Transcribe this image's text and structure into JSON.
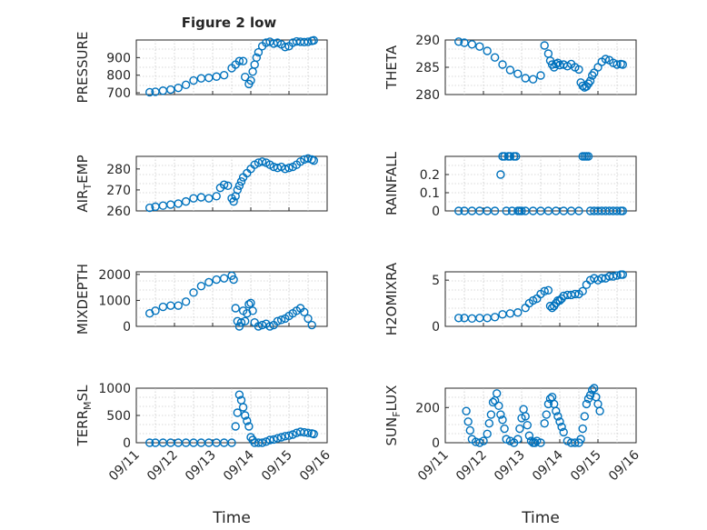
{
  "figure_title": "Figure 2 low",
  "colors": {
    "marker": "#0072bd",
    "axis": "#262626",
    "grid": "#b5b5b5"
  },
  "xlabel": "Time",
  "xticks": [
    "09/11",
    "09/12",
    "09/13",
    "09/14",
    "09/15",
    "09/16"
  ],
  "chart_data": [
    {
      "type": "scatter",
      "ylabel": "PRESSURE",
      "ylim": [
        690,
        1000
      ],
      "yticks": [
        700,
        800,
        900
      ],
      "xlim": [
        0,
        5
      ],
      "grid": true,
      "x": [
        0.35,
        0.5,
        0.7,
        0.9,
        1.1,
        1.3,
        1.5,
        1.7,
        1.9,
        2.1,
        2.3,
        2.5,
        2.6,
        2.7,
        2.8,
        2.85,
        2.95,
        3.0,
        3.05,
        3.1,
        3.15,
        3.2,
        3.3,
        3.4,
        3.5,
        3.6,
        3.7,
        3.8,
        3.9,
        4.0,
        4.1,
        4.2,
        4.3,
        4.4,
        4.5,
        4.6,
        4.65
      ],
      "y": [
        703,
        706,
        712,
        718,
        728,
        745,
        770,
        782,
        785,
        792,
        800,
        840,
        860,
        880,
        880,
        790,
        750,
        770,
        820,
        860,
        900,
        930,
        965,
        985,
        990,
        980,
        985,
        975,
        960,
        965,
        985,
        992,
        990,
        988,
        990,
        995,
        998
      ]
    },
    {
      "type": "scatter",
      "ylabel": "THETA",
      "ylim": [
        280,
        290
      ],
      "yticks": [
        280,
        285,
        290
      ],
      "xlim": [
        0,
        5
      ],
      "grid": true,
      "x": [
        0.35,
        0.5,
        0.7,
        0.9,
        1.1,
        1.3,
        1.5,
        1.7,
        1.9,
        2.1,
        2.3,
        2.5,
        2.6,
        2.7,
        2.75,
        2.8,
        2.85,
        2.9,
        2.95,
        3.0,
        3.1,
        3.2,
        3.3,
        3.4,
        3.5,
        3.55,
        3.6,
        3.65,
        3.7,
        3.75,
        3.8,
        3.85,
        3.9,
        4.0,
        4.1,
        4.2,
        4.3,
        4.4,
        4.5,
        4.6,
        4.65
      ],
      "y": [
        289.7,
        289.5,
        289.2,
        288.8,
        288.0,
        286.8,
        285.5,
        284.5,
        283.8,
        283.0,
        282.8,
        283.5,
        289.0,
        287.5,
        286.2,
        285.5,
        285.0,
        285.6,
        285.8,
        285.4,
        285.5,
        285.2,
        285.6,
        285.0,
        284.6,
        282.2,
        281.6,
        281.3,
        281.5,
        282.0,
        282.5,
        283.5,
        284.0,
        285.0,
        286.0,
        286.5,
        286.3,
        285.8,
        285.5,
        285.6,
        285.5
      ]
    },
    {
      "type": "scatter",
      "ylabel": "AIR_TEMP",
      "ylim": [
        260,
        286
      ],
      "yticks": [
        260,
        270,
        280
      ],
      "xlim": [
        0,
        5
      ],
      "grid": true,
      "x": [
        0.35,
        0.5,
        0.7,
        0.9,
        1.1,
        1.3,
        1.5,
        1.7,
        1.9,
        2.1,
        2.2,
        2.3,
        2.4,
        2.5,
        2.55,
        2.6,
        2.65,
        2.7,
        2.75,
        2.8,
        2.9,
        3.0,
        3.1,
        3.2,
        3.3,
        3.4,
        3.5,
        3.6,
        3.7,
        3.8,
        3.9,
        4.0,
        4.1,
        4.2,
        4.3,
        4.4,
        4.5,
        4.6,
        4.65
      ],
      "y": [
        261.5,
        262,
        262.5,
        263,
        263.5,
        264.5,
        266,
        266.5,
        266,
        267,
        271,
        272.5,
        272,
        266,
        264.5,
        267,
        270,
        272,
        274,
        276,
        278,
        280,
        282,
        283,
        283.5,
        283,
        282,
        281,
        280.5,
        281,
        280,
        280.5,
        281,
        282,
        283.5,
        284.5,
        285,
        284.5,
        284
      ]
    },
    {
      "type": "scatter",
      "ylabel": "RAINFALL",
      "ylim": [
        0,
        0.3
      ],
      "yticks": [
        0,
        0.1,
        0.2
      ],
      "xlim": [
        0,
        5
      ],
      "grid": true,
      "x": [
        0.35,
        0.5,
        0.7,
        0.9,
        1.1,
        1.3,
        1.45,
        1.5,
        1.55,
        1.6,
        1.65,
        1.7,
        1.75,
        1.8,
        1.85,
        1.9,
        1.95,
        2.0,
        2.1,
        2.3,
        2.5,
        2.7,
        2.9,
        3.1,
        3.3,
        3.5,
        3.6,
        3.65,
        3.7,
        3.75,
        3.8,
        3.9,
        4.0,
        4.1,
        4.2,
        4.3,
        4.4,
        4.5,
        4.6,
        4.65
      ],
      "y": [
        0,
        0,
        0,
        0,
        0,
        0,
        0.2,
        0.3,
        0.3,
        0,
        0.3,
        0.3,
        0,
        0.3,
        0.3,
        0,
        0,
        0,
        0,
        0,
        0,
        0,
        0,
        0,
        0,
        0,
        0.3,
        0.3,
        0.3,
        0.3,
        0,
        0,
        0,
        0,
        0,
        0,
        0,
        0,
        0,
        0
      ]
    },
    {
      "type": "scatter",
      "ylabel": "MIXDEPTH",
      "ylim": [
        0,
        2100
      ],
      "yticks": [
        0,
        1000,
        2000
      ],
      "xlim": [
        0,
        5
      ],
      "grid": true,
      "x": [
        0.35,
        0.5,
        0.7,
        0.9,
        1.1,
        1.3,
        1.5,
        1.7,
        1.9,
        2.1,
        2.3,
        2.5,
        2.55,
        2.6,
        2.65,
        2.7,
        2.75,
        2.8,
        2.85,
        2.9,
        2.95,
        3.0,
        3.05,
        3.1,
        3.2,
        3.3,
        3.4,
        3.5,
        3.6,
        3.7,
        3.8,
        3.9,
        4.0,
        4.1,
        4.2,
        4.3,
        4.4,
        4.5,
        4.6
      ],
      "y": [
        500,
        600,
        750,
        800,
        800,
        950,
        1300,
        1550,
        1700,
        1800,
        1850,
        1950,
        1800,
        700,
        200,
        0,
        150,
        600,
        200,
        500,
        850,
        900,
        600,
        150,
        0,
        50,
        100,
        0,
        50,
        200,
        250,
        300,
        400,
        500,
        600,
        700,
        550,
        300,
        50
      ]
    },
    {
      "type": "scatter",
      "ylabel": "H2OMIXRA",
      "ylim": [
        0,
        5.9
      ],
      "yticks": [
        0,
        5
      ],
      "xlim": [
        0,
        5
      ],
      "grid": true,
      "x": [
        0.35,
        0.5,
        0.7,
        0.9,
        1.1,
        1.3,
        1.5,
        1.7,
        1.9,
        2.1,
        2.2,
        2.3,
        2.4,
        2.5,
        2.6,
        2.7,
        2.75,
        2.8,
        2.85,
        2.9,
        2.95,
        3.0,
        3.05,
        3.1,
        3.2,
        3.3,
        3.4,
        3.5,
        3.6,
        3.7,
        3.8,
        3.9,
        4.0,
        4.1,
        4.2,
        4.3,
        4.4,
        4.5,
        4.6,
        4.65
      ],
      "y": [
        0.9,
        0.9,
        0.85,
        0.9,
        0.9,
        1.0,
        1.3,
        1.4,
        1.5,
        2.0,
        2.5,
        2.8,
        3.0,
        3.5,
        3.8,
        3.9,
        2.2,
        2.0,
        2.2,
        2.5,
        2.8,
        2.8,
        3.0,
        3.3,
        3.4,
        3.4,
        3.5,
        3.5,
        3.8,
        4.5,
        5.0,
        5.2,
        5.0,
        5.2,
        5.2,
        5.4,
        5.4,
        5.5,
        5.6,
        5.6
      ]
    },
    {
      "type": "scatter",
      "ylabel": "TERR_MSL",
      "ylim": [
        0,
        1000
      ],
      "yticks": [
        0,
        500,
        1000
      ],
      "xlim": [
        0,
        5
      ],
      "grid": true,
      "x": [
        0.35,
        0.5,
        0.7,
        0.9,
        1.1,
        1.3,
        1.5,
        1.7,
        1.9,
        2.1,
        2.3,
        2.5,
        2.6,
        2.65,
        2.7,
        2.75,
        2.8,
        2.85,
        2.9,
        2.95,
        3.0,
        3.05,
        3.1,
        3.2,
        3.3,
        3.4,
        3.5,
        3.6,
        3.7,
        3.8,
        3.9,
        4.0,
        4.1,
        4.2,
        4.3,
        4.4,
        4.5,
        4.6,
        4.65
      ],
      "y": [
        0,
        0,
        0,
        0,
        0,
        0,
        0,
        0,
        0,
        0,
        0,
        0,
        300,
        550,
        880,
        780,
        650,
        500,
        400,
        300,
        100,
        50,
        0,
        0,
        0,
        20,
        50,
        60,
        80,
        100,
        120,
        130,
        150,
        180,
        200,
        190,
        180,
        170,
        160
      ]
    },
    {
      "type": "scatter",
      "ylabel": "SUN_FLUX",
      "ylim": [
        0,
        310
      ],
      "yticks": [
        0,
        200
      ],
      "xlim": [
        0,
        5
      ],
      "grid": true,
      "x": [
        0.55,
        0.6,
        0.65,
        0.7,
        0.8,
        0.9,
        1.0,
        1.1,
        1.15,
        1.2,
        1.25,
        1.3,
        1.35,
        1.4,
        1.45,
        1.5,
        1.55,
        1.6,
        1.7,
        1.8,
        1.9,
        1.95,
        2.0,
        2.05,
        2.1,
        2.15,
        2.2,
        2.25,
        2.3,
        2.35,
        2.4,
        2.5,
        2.6,
        2.65,
        2.7,
        2.75,
        2.8,
        2.85,
        2.9,
        2.95,
        3.0,
        3.05,
        3.1,
        3.2,
        3.3,
        3.4,
        3.5,
        3.55,
        3.6,
        3.65,
        3.7,
        3.75,
        3.8,
        3.85,
        3.9,
        3.95,
        4.0,
        4.05
      ],
      "y": [
        180,
        120,
        70,
        20,
        5,
        0,
        10,
        50,
        110,
        160,
        230,
        240,
        280,
        210,
        160,
        130,
        80,
        20,
        10,
        0,
        20,
        80,
        140,
        190,
        150,
        100,
        40,
        10,
        0,
        0,
        10,
        0,
        110,
        160,
        220,
        250,
        260,
        220,
        180,
        150,
        120,
        90,
        60,
        10,
        0,
        0,
        0,
        20,
        80,
        150,
        220,
        250,
        270,
        300,
        310,
        260,
        220,
        180
      ]
    }
  ]
}
